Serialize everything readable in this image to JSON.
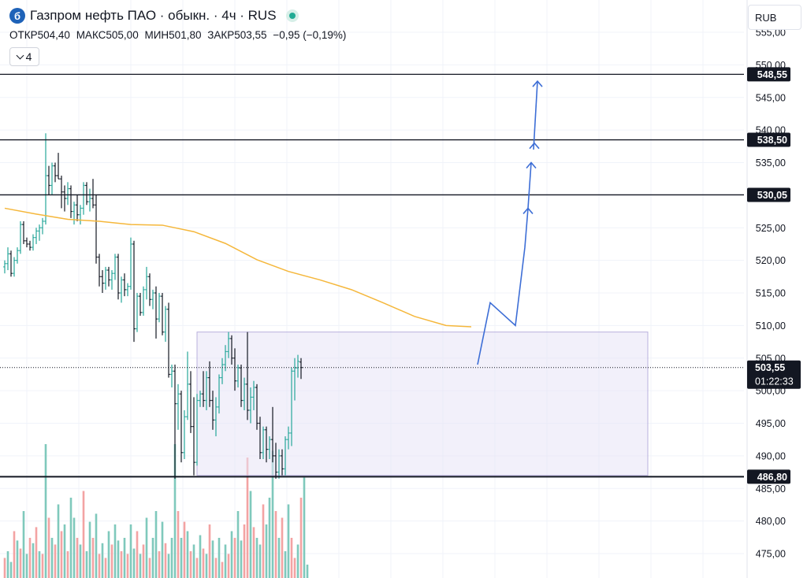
{
  "header": {
    "logo_glyph": "б",
    "title": "Газпром нефть ПАО · обыкн. · 4ч · RUS",
    "ohlc": [
      {
        "key": "ОТКР",
        "value": "504,40"
      },
      {
        "key": "МАКС",
        "value": "505,00"
      },
      {
        "key": "МИН",
        "value": "501,80"
      },
      {
        "key": "ЗАКР",
        "value": "503,55"
      },
      {
        "key": "",
        "value": "−0,95 (−0,19%)"
      }
    ],
    "indicators_count": "4",
    "currency": "RUB"
  },
  "chart_data": {
    "type": "candlestick",
    "y_range": [
      472.5,
      557
    ],
    "y_ticks": [
      "475,00",
      "480,00",
      "485,00",
      "490,00",
      "495,00",
      "500,00",
      "505,00",
      "510,00",
      "515,00",
      "520,00",
      "525,00",
      "530,00",
      "535,00",
      "540,00",
      "545,00",
      "550,00",
      "555,00"
    ],
    "y_tick_values": [
      475,
      480,
      485,
      490,
      495,
      500,
      505,
      510,
      515,
      520,
      525,
      530,
      535,
      540,
      545,
      550,
      555
    ],
    "grid": true,
    "levels": [
      {
        "value": 548.55,
        "label": "548,55"
      },
      {
        "value": 538.5,
        "label": "538,50"
      },
      {
        "value": 530.05,
        "label": "530,05"
      },
      {
        "value": 486.8,
        "label": "486,80"
      }
    ],
    "last_price": {
      "value": 503.55,
      "label": "503,55",
      "countdown": "01:22:33"
    },
    "range_box": {
      "price_top": 509.0,
      "price_bottom": 487.0,
      "bar_start": 61,
      "bar_end": 204
    },
    "ma_line": {
      "color": "#f5b73b",
      "points": [
        [
          0,
          528
        ],
        [
          10,
          527.1
        ],
        [
          20,
          526.3
        ],
        [
          30,
          526
        ],
        [
          40,
          525.5
        ],
        [
          50,
          525.4
        ],
        [
          60,
          524.4
        ],
        [
          70,
          522.6
        ],
        [
          80,
          520.1
        ],
        [
          90,
          518.3
        ],
        [
          100,
          517
        ],
        [
          110,
          515.5
        ],
        [
          120,
          513.5
        ],
        [
          130,
          511.4
        ],
        [
          140,
          510
        ],
        [
          148,
          509.8
        ]
      ]
    },
    "projection_path": {
      "color": "#3d6ed6",
      "points": [
        [
          150,
          504
        ],
        [
          154,
          513.5
        ],
        [
          162,
          510
        ],
        [
          164,
          518
        ],
        [
          165,
          522
        ],
        [
          166,
          528
        ]
      ],
      "arrows": [
        [
          166,
          528
        ],
        [
          167,
          535
        ],
        [
          168,
          538
        ],
        [
          168,
          544
        ],
        [
          169,
          547.5
        ]
      ]
    },
    "colors": {
      "up": "#26a69a",
      "down": "#131722",
      "vol_up": "#7fc9bc",
      "vol_down": "#f3a3a3",
      "level": "#131722"
    },
    "candles_description": "approximate 4h OHLC series, indexes 0-150",
    "candles": [
      [
        519,
        520,
        518,
        519.5
      ],
      [
        519.5,
        522,
        518.5,
        521
      ],
      [
        521,
        521.5,
        517.5,
        518
      ],
      [
        518,
        520.5,
        517.5,
        520
      ],
      [
        520,
        522,
        519.5,
        521.5
      ],
      [
        521.5,
        526,
        521,
        525.5
      ],
      [
        525.5,
        526,
        522.5,
        523
      ],
      [
        523,
        523.5,
        522,
        522.5
      ],
      [
        522.5,
        523,
        521.5,
        522
      ],
      [
        522,
        524,
        521.5,
        523.5
      ],
      [
        523.5,
        525,
        522.5,
        524.5
      ],
      [
        524.5,
        525.5,
        523,
        525
      ],
      [
        525,
        526.5,
        524,
        526
      ],
      [
        526,
        539.5,
        525.5,
        533
      ],
      [
        533,
        534.5,
        530,
        531.5
      ],
      [
        531.5,
        535,
        530,
        534.5
      ],
      [
        534.5,
        535,
        532,
        533
      ],
      [
        533,
        536.5,
        532.5,
        532.5
      ],
      [
        532.5,
        533,
        528,
        530.5
      ],
      [
        530.5,
        531.5,
        527.5,
        529.5
      ],
      [
        529.5,
        532,
        528.5,
        531
      ],
      [
        531,
        531.5,
        526.5,
        527.5
      ],
      [
        527.5,
        529,
        525.5,
        528.5
      ],
      [
        528.5,
        530,
        526,
        527
      ],
      [
        527,
        528.5,
        525.5,
        528
      ],
      [
        528,
        532,
        527,
        531.5
      ],
      [
        531.5,
        532,
        528.5,
        529
      ],
      [
        529,
        531,
        527.5,
        529.5
      ],
      [
        529.5,
        532.5,
        528,
        528.5
      ],
      [
        528.5,
        530,
        519.5,
        520.5
      ],
      [
        520.5,
        521,
        516,
        517.5
      ],
      [
        517.5,
        518.5,
        515,
        516.5
      ],
      [
        516.5,
        519,
        515.5,
        518.5
      ],
      [
        518.5,
        519,
        516,
        517
      ],
      [
        517,
        518.5,
        515.5,
        518
      ],
      [
        518,
        521,
        517,
        520.5
      ],
      [
        520.5,
        521,
        514,
        515
      ],
      [
        515,
        517.5,
        513.5,
        517
      ],
      [
        517,
        518,
        514.5,
        515.5
      ],
      [
        515.5,
        516.5,
        514.5,
        516
      ],
      [
        516,
        523.5,
        515.5,
        522.5
      ],
      [
        522.5,
        523,
        507.5,
        509.5
      ],
      [
        509.5,
        515,
        509,
        514.5
      ],
      [
        514.5,
        515,
        511.5,
        512
      ],
      [
        512,
        516,
        511.5,
        515.5
      ],
      [
        515.5,
        519,
        514,
        517.5
      ],
      [
        517.5,
        518,
        513,
        514
      ],
      [
        514,
        515.5,
        512.5,
        515
      ],
      [
        515,
        516,
        508,
        511
      ],
      [
        511,
        515,
        510.5,
        514.5
      ],
      [
        514.5,
        515,
        508.5,
        509
      ],
      [
        509,
        513,
        507.5,
        512.5
      ],
      [
        512.5,
        513.5,
        502,
        502.5
      ],
      [
        502.5,
        504,
        500.5,
        503
      ],
      [
        503,
        504,
        486.5,
        498
      ],
      [
        498,
        501,
        494,
        499.5
      ],
      [
        499.5,
        500,
        489,
        490.5
      ],
      [
        490.5,
        497,
        489.5,
        496
      ],
      [
        496,
        506,
        495.5,
        501
      ],
      [
        501,
        503,
        493.5,
        494.5
      ],
      [
        494.5,
        499,
        487,
        489
      ],
      [
        489,
        499.5,
        488.5,
        498.5
      ],
      [
        498.5,
        500,
        497.5,
        499.5
      ],
      [
        499.5,
        503,
        497.5,
        498.5
      ],
      [
        498.5,
        503,
        497,
        502
      ],
      [
        502,
        504.5,
        497.5,
        498.5
      ],
      [
        498.5,
        500,
        494,
        495.5
      ],
      [
        495.5,
        499,
        493,
        497.5
      ],
      [
        497.5,
        502.5,
        496.5,
        502
      ],
      [
        502,
        505,
        501,
        504
      ],
      [
        504,
        507,
        503,
        506
      ],
      [
        506,
        509,
        505,
        508
      ],
      [
        508,
        508.5,
        504,
        505
      ],
      [
        505,
        506.5,
        500,
        501.5
      ],
      [
        501.5,
        504,
        500.5,
        503.5
      ],
      [
        503.5,
        504,
        497.5,
        498.5
      ],
      [
        498.5,
        502,
        497,
        501
      ],
      [
        501,
        509,
        495.5,
        497
      ],
      [
        497,
        500.5,
        495,
        499
      ],
      [
        499,
        501.5,
        497,
        500.5
      ],
      [
        500.5,
        501,
        494,
        495
      ],
      [
        495,
        496,
        489.5,
        490.5
      ],
      [
        490.5,
        494.5,
        489.5,
        494
      ],
      [
        494,
        494.5,
        489,
        491
      ],
      [
        491,
        493,
        489.5,
        492.5
      ],
      [
        492.5,
        497.5,
        489,
        490
      ],
      [
        490,
        492,
        486.5,
        487.5
      ],
      [
        487.5,
        491,
        486.5,
        490
      ],
      [
        490,
        491,
        487,
        488
      ],
      [
        488,
        493,
        487,
        492.5
      ],
      [
        492.5,
        494.5,
        491,
        493.5
      ],
      [
        493.5,
        503.5,
        491.5,
        503
      ],
      [
        503,
        505,
        498.5,
        503.5
      ],
      [
        503.5,
        505.5,
        502,
        504.5
      ],
      [
        504.4,
        505,
        501.8,
        503.55
      ]
    ],
    "volumes_description": "relative volume bar heights (0-1)",
    "volumes": [
      [
        0.15,
        0
      ],
      [
        0.2,
        1
      ],
      [
        0.12,
        1
      ],
      [
        0.35,
        0
      ],
      [
        0.28,
        1
      ],
      [
        0.22,
        0
      ],
      [
        0.5,
        1
      ],
      [
        0.18,
        1
      ],
      [
        0.3,
        0
      ],
      [
        0.26,
        1
      ],
      [
        0.38,
        0
      ],
      [
        0.2,
        1
      ],
      [
        0.18,
        0
      ],
      [
        1.0,
        1
      ],
      [
        0.45,
        0
      ],
      [
        0.3,
        1
      ],
      [
        0.25,
        0
      ],
      [
        0.55,
        1
      ],
      [
        0.35,
        0
      ],
      [
        0.4,
        1
      ],
      [
        0.2,
        0
      ],
      [
        0.6,
        1
      ],
      [
        0.45,
        1
      ],
      [
        0.3,
        0
      ],
      [
        0.25,
        1
      ],
      [
        0.65,
        0
      ],
      [
        0.2,
        1
      ],
      [
        0.42,
        1
      ],
      [
        0.3,
        0
      ],
      [
        0.48,
        1
      ],
      [
        0.18,
        0
      ],
      [
        0.26,
        1
      ],
      [
        0.15,
        0
      ],
      [
        0.35,
        1
      ],
      [
        0.25,
        0
      ],
      [
        0.4,
        1
      ],
      [
        0.28,
        1
      ],
      [
        0.2,
        0
      ],
      [
        0.3,
        1
      ],
      [
        0.18,
        0
      ],
      [
        0.4,
        1
      ],
      [
        0.22,
        1
      ],
      [
        0.35,
        0
      ],
      [
        0.18,
        1
      ],
      [
        0.25,
        0
      ],
      [
        0.45,
        1
      ],
      [
        0.15,
        0
      ],
      [
        0.3,
        1
      ],
      [
        0.5,
        1
      ],
      [
        0.2,
        0
      ],
      [
        0.42,
        1
      ],
      [
        0.26,
        0
      ],
      [
        0.18,
        1
      ],
      [
        0.3,
        1
      ],
      [
        1.0,
        1
      ],
      [
        0.5,
        0
      ],
      [
        0.3,
        1
      ],
      [
        0.42,
        0
      ],
      [
        0.35,
        1
      ],
      [
        0.2,
        0
      ],
      [
        0.25,
        1
      ],
      [
        0.15,
        0
      ],
      [
        0.32,
        1
      ],
      [
        0.22,
        0
      ],
      [
        0.18,
        1
      ],
      [
        0.4,
        0
      ],
      [
        0.28,
        1
      ],
      [
        0.15,
        0
      ],
      [
        0.3,
        1
      ],
      [
        0.12,
        0
      ],
      [
        0.25,
        1
      ],
      [
        0.18,
        0
      ],
      [
        0.35,
        1
      ],
      [
        0.3,
        0
      ],
      [
        0.5,
        1
      ],
      [
        0.28,
        1
      ],
      [
        0.4,
        0
      ],
      [
        0.9,
        0
      ],
      [
        0.65,
        1
      ],
      [
        0.38,
        0
      ],
      [
        0.3,
        1
      ],
      [
        0.25,
        1
      ],
      [
        0.55,
        0
      ],
      [
        0.4,
        1
      ],
      [
        0.6,
        1
      ],
      [
        0.95,
        1
      ],
      [
        0.5,
        0
      ],
      [
        0.3,
        1
      ],
      [
        0.45,
        0
      ],
      [
        0.2,
        1
      ],
      [
        0.55,
        1
      ],
      [
        0.3,
        0
      ],
      [
        0.15,
        0
      ],
      [
        0.25,
        1
      ],
      [
        0.6,
        0
      ],
      [
        0.75,
        1
      ],
      [
        0.1,
        1
      ]
    ]
  }
}
